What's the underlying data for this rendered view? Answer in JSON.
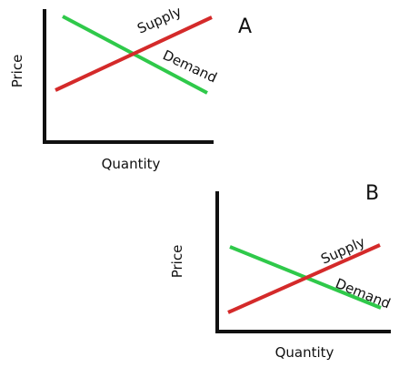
{
  "colors": {
    "axis": "#111111",
    "supply": "#d42a2a",
    "demand": "#2fc94a",
    "text": "#111111",
    "background": "#ffffff"
  },
  "panels": [
    {
      "letter": "A",
      "x_axis_label": "Quantity",
      "y_axis_label": "Price",
      "supply_label": "Supply",
      "demand_label": "Demand"
    },
    {
      "letter": "B",
      "x_axis_label": "Quantity",
      "y_axis_label": "Price",
      "supply_label": "Supply",
      "demand_label": "Demand"
    }
  ]
}
